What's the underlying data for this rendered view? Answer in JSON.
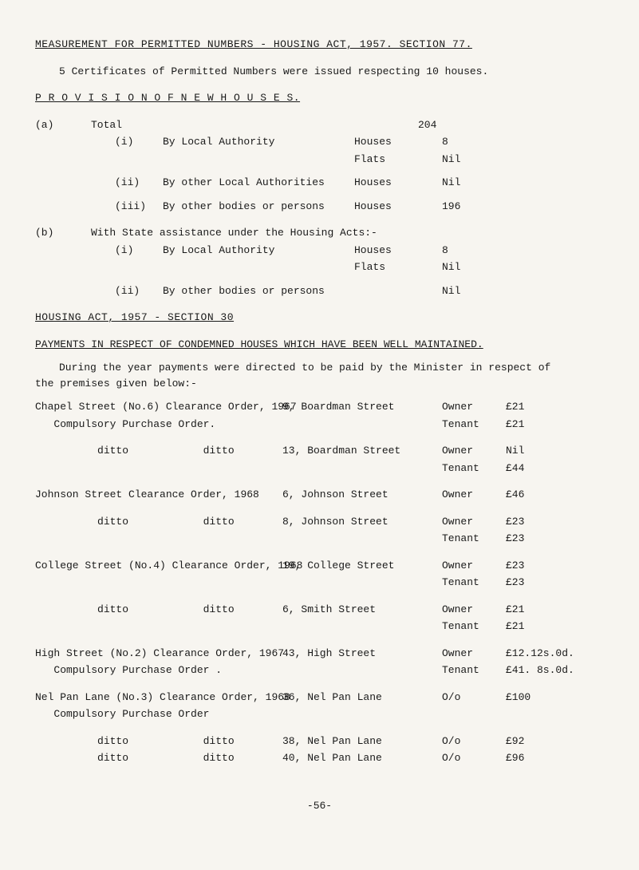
{
  "header": {
    "line": "MEASUREMENT   FOR   PERMITTED   NUMBERS   -   HOUSING   ACT,   1957.   SECTION 77."
  },
  "cert_line": "5 Certificates of Permitted Numbers were issued respecting 10 houses.",
  "provision_title": "P R O V I S I O N   O F   N E W   H O U S E S.",
  "prov": {
    "a": {
      "label": "(a)",
      "total": "Total",
      "total_val": "204",
      "i": {
        "n": "(i)",
        "t": "By Local Authority",
        "houses": "Houses",
        "houses_v": "8",
        "flats": "Flats",
        "flats_v": "Nil"
      },
      "ii": {
        "n": "(ii)",
        "t": "By other Local Authorities",
        "houses": "Houses",
        "houses_v": "Nil"
      },
      "iii": {
        "n": "(iii)",
        "t": "By other bodies or persons",
        "houses": "Houses",
        "houses_v": "196"
      }
    },
    "b": {
      "label": "(b)",
      "title": "With State assistance under the Housing Acts:-",
      "i": {
        "n": "(i)",
        "t": "By Local Authority",
        "houses": "Houses",
        "houses_v": "8",
        "flats": "Flats",
        "flats_v": "Nil"
      },
      "ii": {
        "n": "(ii)",
        "t": "By other bodies or persons",
        "val": "Nil"
      }
    }
  },
  "housing_act_line": "HOUSING   ACT,   1957   -   SECTION 30",
  "payments_line": "PAYMENTS   IN   RESPECT   OF   CONDEMNED   HOUSES   WHICH   HAVE   BEEN   WELL   MAINTAINED.",
  "intro": {
    "l1": "During the year payments were directed to be paid by the Minister in respect of",
    "l2": "the premises given below:-"
  },
  "rows": [
    {
      "a": "Chapel Street (No.6) Clearance Order, 1967",
      "b": "9, Boardman Street",
      "c": "Owner",
      "d": "£21"
    },
    {
      "a": "   Compulsory Purchase Order.",
      "b": "",
      "c": "Tenant",
      "d": "£21"
    },
    {
      "a": "          ditto            ditto",
      "b": "13, Boardman Street",
      "c": "Owner",
      "d": "Nil"
    },
    {
      "a": "",
      "b": "",
      "c": "Tenant",
      "d": "£44"
    },
    {
      "a": "Johnson Street Clearance Order, 1968",
      "b": "6, Johnson Street",
      "c": "Owner",
      "d": "£46"
    },
    {
      "a": "          ditto            ditto",
      "b": "8, Johnson Street",
      "c": "Owner",
      "d": "£23"
    },
    {
      "a": "",
      "b": "",
      "c": "Tenant",
      "d": "£23"
    },
    {
      "a": "College Street (No.4) Clearance Order, 1968",
      "b": "19, College Street",
      "c": "Owner",
      "d": "£23"
    },
    {
      "a": "",
      "b": "",
      "c": "Tenant",
      "d": "£23"
    },
    {
      "a": "          ditto            ditto",
      "b": "6, Smith Street",
      "c": "Owner",
      "d": "£21"
    },
    {
      "a": "",
      "b": "",
      "c": "Tenant",
      "d": "£21"
    },
    {
      "a": "High Street (No.2) Clearance Order, 1967",
      "b": "43, High Street",
      "c": "Owner",
      "d": "£12.12s.0d."
    },
    {
      "a": "   Compulsory Purchase Order .",
      "b": "",
      "c": "Tenant",
      "d": "£41. 8s.0d."
    },
    {
      "a": "Nel Pan Lane (No.3) Clearance Order, 1968",
      "b": "36, Nel Pan Lane",
      "c": "O/o",
      "d": "£100"
    },
    {
      "a": "   Compulsory Purchase Order",
      "b": "",
      "c": "",
      "d": ""
    },
    {
      "a": "          ditto            ditto",
      "b": "38, Nel Pan Lane",
      "c": "O/o",
      "d": "£92"
    },
    {
      "a": "          ditto            ditto",
      "b": "40, Nel Pan Lane",
      "c": "O/o",
      "d": "£96"
    }
  ],
  "pagefoot": "-56-"
}
